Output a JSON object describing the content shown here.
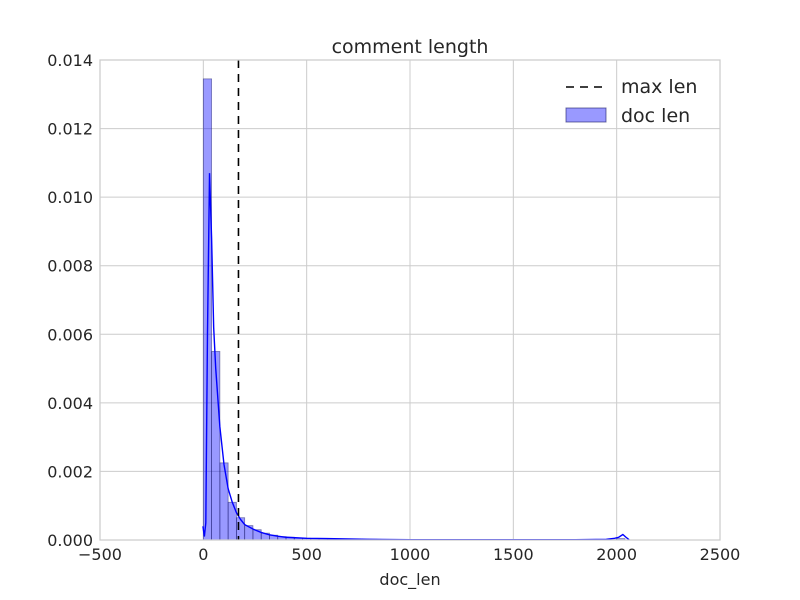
{
  "chart_data": {
    "type": "bar",
    "title": "comment length",
    "xlabel": "doc_len",
    "ylabel": "",
    "xlim": [
      -500,
      2500
    ],
    "ylim": [
      0,
      0.014
    ],
    "xticks": [
      -500,
      0,
      500,
      1000,
      1500,
      2000,
      2500
    ],
    "xtick_labels": [
      "−500",
      "0",
      "500",
      "1000",
      "1500",
      "2000",
      "2500"
    ],
    "yticks": [
      0,
      0.002,
      0.004,
      0.006,
      0.008,
      0.01,
      0.012,
      0.014
    ],
    "ytick_labels": [
      "0.000",
      "0.002",
      "0.004",
      "0.006",
      "0.008",
      "0.010",
      "0.012",
      "0.014"
    ],
    "grid": true,
    "legend_position": "top-right",
    "series": [
      {
        "name": "doc len",
        "kind": "histogram",
        "color": "#0000ff",
        "bin_width": 40,
        "bins": [
          [
            0,
            0.01345
          ],
          [
            40,
            0.0055
          ],
          [
            80,
            0.00225
          ],
          [
            120,
            0.0011
          ],
          [
            160,
            0.00065
          ],
          [
            200,
            0.00042
          ],
          [
            240,
            0.0003
          ],
          [
            280,
            0.0002
          ],
          [
            320,
            0.00014
          ],
          [
            360,
            0.0001
          ],
          [
            400,
            8e-05
          ],
          [
            440,
            6e-05
          ],
          [
            480,
            5e-05
          ],
          [
            520,
            4e-05
          ],
          [
            560,
            4e-05
          ],
          [
            600,
            3e-05
          ],
          [
            640,
            3e-05
          ],
          [
            680,
            3e-05
          ],
          [
            720,
            2e-05
          ],
          [
            760,
            2e-05
          ],
          [
            800,
            2e-05
          ],
          [
            840,
            1e-05
          ],
          [
            880,
            1e-05
          ],
          [
            920,
            1e-05
          ],
          [
            960,
            1e-05
          ],
          [
            1000,
            1e-05
          ],
          [
            1040,
            1e-05
          ],
          [
            1080,
            1e-05
          ],
          [
            1120,
            1e-05
          ],
          [
            1160,
            1e-05
          ],
          [
            1200,
            1e-05
          ],
          [
            1240,
            1e-05
          ],
          [
            1280,
            1e-05
          ],
          [
            1320,
            1e-05
          ],
          [
            1360,
            1e-05
          ],
          [
            1400,
            1e-05
          ],
          [
            1440,
            1e-05
          ],
          [
            1480,
            1e-05
          ],
          [
            1520,
            1e-05
          ],
          [
            1560,
            1e-05
          ],
          [
            1600,
            1e-05
          ],
          [
            1640,
            1e-05
          ],
          [
            1680,
            1e-05
          ],
          [
            1720,
            1e-05
          ],
          [
            1760,
            1e-05
          ],
          [
            1800,
            1e-05
          ],
          [
            1840,
            1e-05
          ],
          [
            1880,
            1e-05
          ],
          [
            1920,
            1e-05
          ],
          [
            1960,
            1e-05
          ],
          [
            2000,
            4e-05
          ]
        ]
      },
      {
        "name": "",
        "kind": "kde",
        "color": "#0000ff",
        "points": [
          [
            -2,
            0.0004
          ],
          [
            5,
            0.0001
          ],
          [
            12,
            0.0005
          ],
          [
            20,
            0.006
          ],
          [
            30,
            0.0107
          ],
          [
            40,
            0.0088
          ],
          [
            50,
            0.0062
          ],
          [
            60,
            0.005
          ],
          [
            80,
            0.0033
          ],
          [
            100,
            0.0022
          ],
          [
            120,
            0.0015
          ],
          [
            140,
            0.0011
          ],
          [
            160,
            0.0008
          ],
          [
            180,
            0.0006
          ],
          [
            200,
            0.00045
          ],
          [
            240,
            0.00032
          ],
          [
            280,
            0.00022
          ],
          [
            320,
            0.00015
          ],
          [
            360,
            0.00011
          ],
          [
            400,
            8e-05
          ],
          [
            500,
            5e-05
          ],
          [
            600,
            4e-05
          ],
          [
            700,
            3e-05
          ],
          [
            800,
            2e-05
          ],
          [
            1000,
            1e-05
          ],
          [
            1200,
            1e-05
          ],
          [
            1500,
            1e-05
          ],
          [
            1800,
            1e-05
          ],
          [
            1950,
            2e-05
          ],
          [
            1990,
            5e-05
          ],
          [
            2010,
            8e-05
          ],
          [
            2030,
            0.00016
          ],
          [
            2045,
            8e-05
          ],
          [
            2060,
            1e-05
          ]
        ]
      },
      {
        "name": "max len",
        "kind": "vline",
        "color": "#000000",
        "x": 170
      }
    ]
  }
}
